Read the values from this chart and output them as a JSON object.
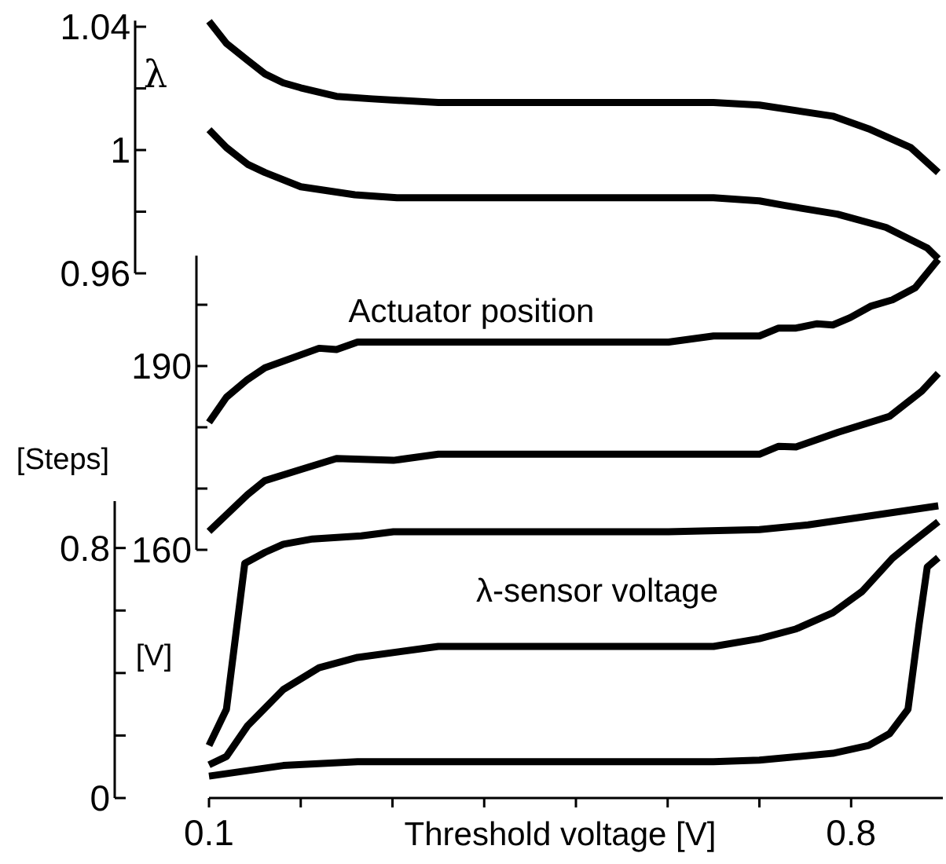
{
  "chart_data": [
    {
      "type": "line",
      "ylabel": "λ",
      "xlim": [
        0.1,
        0.9
      ],
      "ylim": [
        0.96,
        1.042
      ],
      "yticks": [
        0.96,
        {
          "value": 0.98,
          "label": null
        },
        1,
        {
          "value": 1.02,
          "label": null
        },
        1.04
      ],
      "tick_labels": "y",
      "grid": false,
      "marker": "none",
      "line_style": "solid",
      "series": [
        {
          "color": "#000000",
          "x": [
            0.1,
            0.119,
            0.142,
            0.161,
            0.181,
            0.2,
            0.239,
            0.278,
            0.35,
            0.65,
            0.7,
            0.78,
            0.819,
            0.865,
            0.895
          ],
          "values": [
            1.0418,
            1.0346,
            1.0291,
            1.0247,
            1.0218,
            1.0202,
            1.0174,
            1.0166,
            1.0154,
            1.0154,
            1.0146,
            1.011,
            1.0069,
            1.0008,
            0.9927
          ]
        },
        {
          "color": "#000000",
          "x": [
            0.1,
            0.119,
            0.142,
            0.161,
            0.2,
            0.259,
            0.305,
            0.65,
            0.7,
            0.728,
            0.785,
            0.838,
            0.883,
            0.895
          ],
          "values": [
            1.0066,
            1.0008,
            0.9954,
            0.9927,
            0.9881,
            0.9855,
            0.9845,
            0.9845,
            0.9835,
            0.982,
            0.9792,
            0.9749,
            0.9682,
            0.9647
          ]
        }
      ]
    },
    {
      "type": "line",
      "title": "Actuator position",
      "ylabel": "[Steps]",
      "xlim": [
        0.1,
        0.9
      ],
      "ylim": [
        160,
        208
      ],
      "yticks": [
        160,
        {
          "value": 170,
          "label": null
        },
        {
          "value": 180,
          "label": null
        },
        190,
        {
          "value": 200,
          "label": null
        }
      ],
      "tick_labels": "y",
      "grid": false,
      "marker": "none",
      "line_style": "solid",
      "series": [
        {
          "color": "#000000",
          "x": [
            0.1,
            0.119,
            0.142,
            0.161,
            0.22,
            0.239,
            0.262,
            0.601,
            0.65,
            0.7,
            0.721,
            0.74,
            0.763,
            0.78,
            0.799,
            0.822,
            0.845,
            0.87,
            0.895
          ],
          "values": [
            180.8,
            184.9,
            187.8,
            189.7,
            192.9,
            192.7,
            193.9,
            193.9,
            194.9,
            194.9,
            196.2,
            196.2,
            196.9,
            196.7,
            197.9,
            199.8,
            200.8,
            202.8,
            207.4
          ]
        },
        {
          "color": "#000000",
          "x": [
            0.1,
            0.142,
            0.161,
            0.2,
            0.239,
            0.301,
            0.35,
            0.7,
            0.721,
            0.74,
            0.786,
            0.842,
            0.877,
            0.895
          ],
          "values": [
            163,
            169,
            171.3,
            173.1,
            174.9,
            174.6,
            175.6,
            175.6,
            176.9,
            176.8,
            179.2,
            181.8,
            185.9,
            188.8
          ]
        }
      ]
    },
    {
      "type": "line",
      "title": "λ-sensor voltage",
      "xlabel": "Threshold voltage [V]",
      "ylabel": "[V]",
      "xlim": [
        0.1,
        0.9
      ],
      "ylim": [
        0,
        0.95
      ],
      "xticks": [
        0.1,
        {
          "value": 0.2,
          "label": null
        },
        {
          "value": 0.3,
          "label": null
        },
        {
          "value": 0.4,
          "label": null
        },
        {
          "value": 0.5,
          "label": null
        },
        {
          "value": 0.6,
          "label": null
        },
        {
          "value": 0.7,
          "label": null
        },
        0.8
      ],
      "yticks": [
        0,
        {
          "value": 0.2,
          "label": null
        },
        {
          "value": 0.4,
          "label": null
        },
        {
          "value": 0.6,
          "label": null
        },
        0.8
      ],
      "grid": false,
      "marker": "none",
      "line_style": "solid",
      "series": [
        {
          "color": "#000000",
          "x": [
            0.1,
            0.119,
            0.139,
            0.161,
            0.181,
            0.213,
            0.266,
            0.301,
            0.601,
            0.7,
            0.753,
            0.812,
            0.895
          ],
          "values": [
            0.168,
            0.284,
            0.751,
            0.786,
            0.812,
            0.829,
            0.839,
            0.852,
            0.852,
            0.859,
            0.874,
            0.899,
            0.935
          ]
        },
        {
          "color": "#000000",
          "x": [
            0.1,
            0.119,
            0.142,
            0.181,
            0.22,
            0.262,
            0.35,
            0.65,
            0.7,
            0.74,
            0.78,
            0.812,
            0.845,
            0.865,
            0.895
          ],
          "values": [
            0.106,
            0.133,
            0.231,
            0.347,
            0.417,
            0.45,
            0.485,
            0.485,
            0.51,
            0.541,
            0.593,
            0.661,
            0.767,
            0.815,
            0.884
          ]
        },
        {
          "color": "#000000",
          "x": [
            0.1,
            0.181,
            0.262,
            0.65,
            0.7,
            0.78,
            0.819,
            0.842,
            0.862,
            0.874,
            0.883,
            0.895
          ],
          "values": [
            0.07,
            0.104,
            0.116,
            0.116,
            0.121,
            0.143,
            0.168,
            0.206,
            0.284,
            0.554,
            0.739,
            0.769
          ]
        }
      ]
    }
  ]
}
